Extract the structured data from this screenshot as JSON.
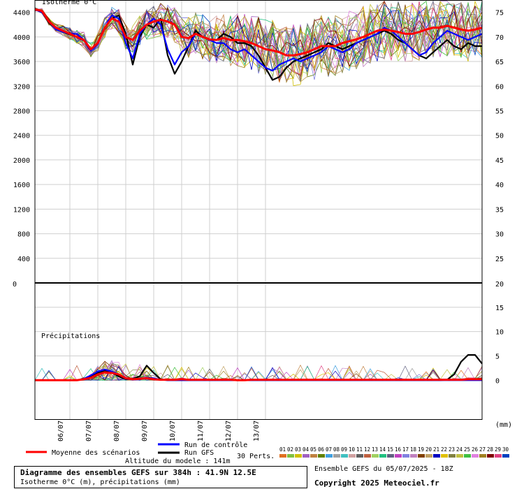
{
  "chart_data": {
    "type": "line",
    "title": "Diagramme des ensembles GEFS sur 384h : 41.9N 12.5E",
    "subtitle": "Isotherme 0°C (m), précipitations (mm)",
    "upper_panel": {
      "label": "Isotherme 0°C",
      "ylim": [
        0,
        4600
      ],
      "yticks_left": [
        400,
        800,
        1200,
        1600,
        2000,
        2400,
        2800,
        3200,
        3600,
        4000,
        4400
      ],
      "yticks_right": [
        "25",
        "30",
        "35",
        "40",
        "45",
        "50",
        "55",
        "60",
        "65",
        "70",
        "75"
      ],
      "right_axis_zero_label": "20",
      "left_axis_zero_label": "0",
      "x": [
        0,
        6,
        12,
        18,
        24,
        30,
        36,
        42,
        48,
        54,
        60,
        66,
        72,
        78,
        84,
        90,
        96,
        102,
        108,
        114,
        120,
        126,
        132,
        138,
        144,
        150,
        156,
        162,
        168,
        174,
        180,
        186,
        192,
        198,
        204,
        210,
        216,
        222,
        228,
        234,
        240,
        246,
        252,
        258,
        264,
        270,
        276,
        282,
        288,
        294,
        300,
        306,
        312,
        318,
        324,
        330,
        336,
        342,
        348,
        354,
        360,
        366,
        372,
        378,
        384
      ],
      "series": [
        {
          "name": "Moyenne des scénarios",
          "color": "#ff0000",
          "values": [
            4450,
            4420,
            4250,
            4150,
            4100,
            4050,
            4000,
            3950,
            3800,
            3900,
            4150,
            4300,
            4250,
            4000,
            3950,
            4100,
            4200,
            4250,
            4280,
            4250,
            4200,
            4000,
            3980,
            4050,
            4000,
            3960,
            3950,
            3980,
            3950,
            3950,
            3930,
            3900,
            3850,
            3800,
            3780,
            3750,
            3700,
            3700,
            3720,
            3750,
            3800,
            3850,
            3850,
            3850,
            3900,
            3930,
            3960,
            4000,
            4050,
            4100,
            4120,
            4100,
            4080,
            4050,
            4050,
            4080,
            4120,
            4150,
            4150,
            4180,
            4150,
            4120,
            4100,
            4120,
            4150
          ]
        },
        {
          "name": "Run de contrôle",
          "color": "#0000ff",
          "values": [
            4450,
            4400,
            4250,
            4120,
            4080,
            4050,
            4050,
            3950,
            3780,
            3900,
            4150,
            4350,
            4300,
            3900,
            3650,
            4050,
            4200,
            4300,
            4200,
            3800,
            3550,
            3750,
            3850,
            4050,
            4000,
            3950,
            3900,
            3900,
            3800,
            3750,
            3800,
            3700,
            3600,
            3500,
            3450,
            3550,
            3600,
            3650,
            3600,
            3650,
            3700,
            3750,
            3850,
            3800,
            3750,
            3800,
            3900,
            3950,
            4000,
            4050,
            4150,
            4100,
            4000,
            3900,
            3800,
            3700,
            3750,
            3900,
            4000,
            4100,
            4050,
            4000,
            3950,
            4000,
            4050
          ]
        },
        {
          "name": "Run GFS",
          "color": "#000000",
          "values": [
            4450,
            4400,
            4230,
            4130,
            4080,
            4040,
            4000,
            3950,
            3800,
            3900,
            4150,
            4300,
            4350,
            4050,
            3550,
            4000,
            4200,
            4150,
            4300,
            3700,
            3400,
            3600,
            3850,
            4100,
            4000,
            3950,
            3950,
            4050,
            4000,
            3900,
            3900,
            3850,
            3700,
            3500,
            3300,
            3350,
            3500,
            3600,
            3650,
            3700,
            3750,
            3800,
            3900,
            3850,
            3800,
            3850,
            3900,
            3950,
            4000,
            4050,
            4100,
            4050,
            3950,
            3900,
            3800,
            3700,
            3650,
            3750,
            3850,
            3950,
            3850,
            3800,
            3900,
            3850,
            3850
          ]
        }
      ]
    },
    "lower_panel": {
      "label": "Précipitations",
      "unit": "(mm)",
      "ylim": [
        -8,
        20
      ],
      "yticks_right": [
        "0",
        "5",
        "10",
        "15",
        "20"
      ],
      "x": [
        0,
        6,
        12,
        18,
        24,
        30,
        36,
        42,
        48,
        54,
        60,
        66,
        72,
        78,
        84,
        90,
        96,
        102,
        108,
        114,
        120,
        126,
        132,
        138,
        144,
        150,
        156,
        162,
        168,
        174,
        180,
        186,
        192,
        198,
        204,
        210,
        216,
        222,
        228,
        234,
        240,
        246,
        252,
        258,
        264,
        270,
        276,
        282,
        288,
        294,
        300,
        306,
        312,
        318,
        324,
        330,
        336,
        342,
        348,
        354,
        360,
        366,
        372,
        378,
        384
      ],
      "series": [
        {
          "name": "Moyenne des scénarios",
          "color": "#ff0000",
          "values": [
            0,
            0,
            0,
            0,
            0,
            0,
            0,
            0.2,
            0.5,
            1.2,
            1.6,
            1.5,
            1.2,
            0.4,
            0.2,
            0.3,
            0.4,
            0.2,
            0.1,
            0.1,
            0.1,
            0.2,
            0.1,
            0.1,
            0.1,
            0.1,
            0.1,
            0.1,
            0.1,
            0,
            0,
            0.1,
            0.1,
            0.1,
            0.1,
            0.1,
            0.1,
            0.1,
            0.1,
            0.1,
            0.1,
            0.1,
            0.1,
            0.1,
            0.1,
            0.1,
            0.1,
            0.1,
            0.1,
            0.1,
            0.1,
            0.1,
            0.1,
            0.1,
            0.1,
            0.1,
            0.1,
            0.1,
            0.1,
            0.1,
            0.1,
            0.1,
            0.2,
            0.2,
            0.2
          ]
        },
        {
          "name": "Run de contrôle",
          "color": "#0000ff",
          "values": [
            0,
            0,
            0,
            0,
            0,
            0,
            0,
            0.3,
            1.0,
            1.8,
            2.2,
            1.8,
            1.2,
            0.3,
            0.1,
            0.2,
            0.5,
            0.4,
            0.1,
            0,
            0,
            0,
            0,
            0,
            0,
            0,
            0,
            0,
            0,
            0,
            0,
            0,
            0,
            0,
            0,
            0,
            0,
            0,
            0,
            0,
            0,
            0,
            0,
            0,
            0,
            0,
            0,
            0,
            0,
            0,
            0,
            0,
            0,
            0,
            0,
            0,
            0,
            0,
            0,
            0,
            0,
            0,
            0,
            0,
            0
          ]
        },
        {
          "name": "Run GFS",
          "color": "#000000",
          "values": [
            0,
            0,
            0,
            0,
            0,
            0,
            0,
            0.2,
            0.8,
            1.5,
            2.0,
            1.6,
            0.8,
            0.2,
            0.3,
            0.8,
            3.0,
            1.5,
            0.2,
            0,
            0,
            0,
            0,
            0,
            0,
            0,
            0,
            0,
            0,
            0,
            0,
            0,
            0,
            0,
            0,
            0,
            0,
            0,
            0,
            0,
            0,
            0,
            0,
            0,
            0,
            0,
            0,
            0,
            0,
            0,
            0,
            0,
            0,
            0,
            0,
            0,
            0,
            0,
            0,
            0.1,
            1.2,
            3.8,
            5.2,
            5.2,
            3.4
          ]
        }
      ]
    },
    "x_tick_labels": [
      "06/07",
      "07/07",
      "08/07",
      "09/07",
      "10/07",
      "11/07",
      "12/07",
      "13/07"
    ],
    "legend": {
      "mean": "Moyenne des scénarios",
      "control": "Run de contrôle",
      "gfs": "Run GFS",
      "perts_label": "30 Perts.",
      "perts": [
        "01",
        "02",
        "03",
        "04",
        "05",
        "06",
        "07",
        "08",
        "09",
        "10",
        "11",
        "12",
        "13",
        "14",
        "15",
        "16",
        "17",
        "18",
        "19",
        "20",
        "21",
        "22",
        "23",
        "24",
        "25",
        "26",
        "27",
        "28",
        "29",
        "30"
      ],
      "pert_colors": [
        "#e07020",
        "#80c040",
        "#d0c000",
        "#a060c0",
        "#c08040",
        "#608000",
        "#40a0e0",
        "#a0a0a0",
        "#40c0c0",
        "#d0a0a0",
        "#606060",
        "#c06040",
        "#a0d060",
        "#20c080",
        "#606080",
        "#c040c0",
        "#8080e0",
        "#c080c0",
        "#804000",
        "#c0a060",
        "#0000c0",
        "#e0c000",
        "#808040",
        "#c0c040",
        "#40c040",
        "#e080e0",
        "#a08020",
        "#800000",
        "#e04080",
        "#0040c0"
      ]
    },
    "altitude_label": "Altitude du modele : 141m",
    "run_label": "Ensemble GEFS du 05/07/2025 - 18Z",
    "copyright": "Copyright 2025 Meteociel.fr"
  }
}
